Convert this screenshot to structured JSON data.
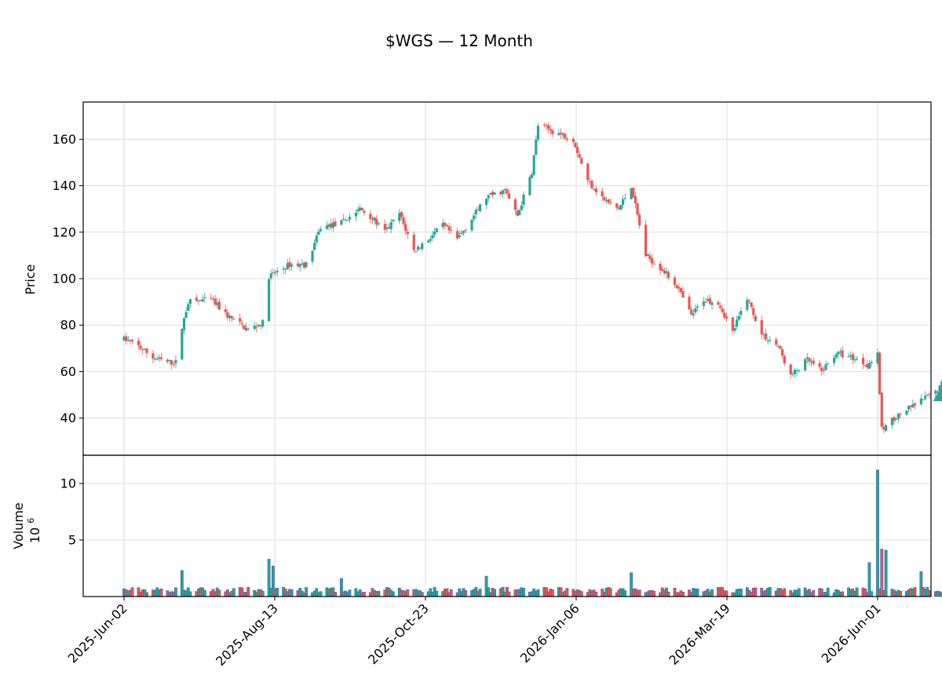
{
  "chart_data": {
    "type": "candlestick",
    "title": "$WGS — 12 Month",
    "price_panel": {
      "ylabel": "Price",
      "yticks": [
        40,
        60,
        80,
        100,
        120,
        140,
        160
      ],
      "ylim": [
        24,
        176
      ],
      "grid": true
    },
    "volume_panel": {
      "ylabel": "Volume",
      "yunit_exponent": "6",
      "yunit_base": "10",
      "yticks": [
        5,
        10
      ],
      "ylim": [
        0,
        12.5
      ],
      "grid": true
    },
    "x_axis": {
      "start_date": "2025-06-02",
      "end_date": "2026-06-01",
      "tick_labels": [
        "2025-Jun-02",
        "2025-Aug-13",
        "2025-Oct-23",
        "2026-Jan-06",
        "2026-Mar-19",
        "2026-Jun-01"
      ]
    },
    "colors": {
      "up": "#26a69a",
      "down": "#ef5350",
      "volume_up": "#26a69a",
      "volume_down": "#ef5350",
      "volume_edge": "#3b5ba5",
      "grid": "#dddddd",
      "marker": "#26a69a"
    },
    "price_anchors": [
      [
        "2025-06-02",
        74
      ],
      [
        "2025-06-09",
        71
      ],
      [
        "2025-06-16",
        66
      ],
      [
        "2025-06-23",
        64
      ],
      [
        "2025-06-27",
        64
      ],
      [
        "2025-06-30",
        79
      ],
      [
        "2025-07-03",
        90
      ],
      [
        "2025-07-14",
        91
      ],
      [
        "2025-07-22",
        84
      ],
      [
        "2025-08-01",
        78
      ],
      [
        "2025-08-08",
        81
      ],
      [
        "2025-08-11",
        101
      ],
      [
        "2025-08-21",
        106
      ],
      [
        "2025-08-29",
        106
      ],
      [
        "2025-09-05",
        122
      ],
      [
        "2025-09-15",
        124
      ],
      [
        "2025-09-24",
        130
      ],
      [
        "2025-09-29",
        127
      ],
      [
        "2025-10-06",
        120
      ],
      [
        "2025-10-13",
        128
      ],
      [
        "2025-10-20",
        112
      ],
      [
        "2025-10-27",
        117
      ],
      [
        "2025-11-03",
        123
      ],
      [
        "2025-11-10",
        117
      ],
      [
        "2025-11-14",
        122
      ],
      [
        "2025-11-24",
        135
      ],
      [
        "2025-12-03",
        138
      ],
      [
        "2025-12-09",
        127
      ],
      [
        "2025-12-16",
        146
      ],
      [
        "2025-12-19",
        166
      ],
      [
        "2026-01-05",
        160
      ],
      [
        "2026-01-12",
        142
      ],
      [
        "2026-01-21",
        133
      ],
      [
        "2026-01-27",
        130
      ],
      [
        "2026-02-02",
        140
      ],
      [
        "2026-02-09",
        110
      ],
      [
        "2026-02-17",
        104
      ],
      [
        "2026-02-24",
        97
      ],
      [
        "2026-03-03",
        84
      ],
      [
        "2026-03-09",
        91
      ],
      [
        "2026-03-16",
        90
      ],
      [
        "2026-03-23",
        77
      ],
      [
        "2026-03-30",
        92
      ],
      [
        "2026-04-06",
        76
      ],
      [
        "2026-04-14",
        71
      ],
      [
        "2026-04-20",
        58
      ],
      [
        "2026-04-28",
        65
      ],
      [
        "2026-05-05",
        60
      ],
      [
        "2026-05-12",
        68
      ],
      [
        "2026-05-20",
        66
      ],
      [
        "2026-05-27",
        63
      ],
      [
        "2026-06-01",
        67
      ],
      [
        "2026-06-03",
        35
      ],
      [
        "2026-06-09",
        40
      ],
      [
        "2026-06-16",
        44
      ],
      [
        "2026-06-23",
        48
      ],
      [
        "2026-06-30",
        52
      ],
      [
        "2026-07-02",
        55
      ]
    ],
    "volume_spikes": [
      [
        "2025-06-30",
        2.3
      ],
      [
        "2025-07-06",
        1.8
      ],
      [
        "2025-08-11",
        3.3
      ],
      [
        "2025-08-13",
        2.7
      ],
      [
        "2025-09-15",
        1.6
      ],
      [
        "2025-11-24",
        1.8
      ],
      [
        "2026-02-02",
        2.1
      ],
      [
        "2026-03-14",
        1.8
      ],
      [
        "2026-05-28",
        3.0
      ],
      [
        "2026-06-01",
        11.2
      ],
      [
        "2026-06-03",
        4.2
      ],
      [
        "2026-06-05",
        4.1
      ],
      [
        "2026-06-22",
        2.2
      ]
    ],
    "volume_base": 0.55,
    "end_marker": {
      "date": "2026-07-02",
      "price": 50,
      "shape": "triangle-up"
    }
  }
}
